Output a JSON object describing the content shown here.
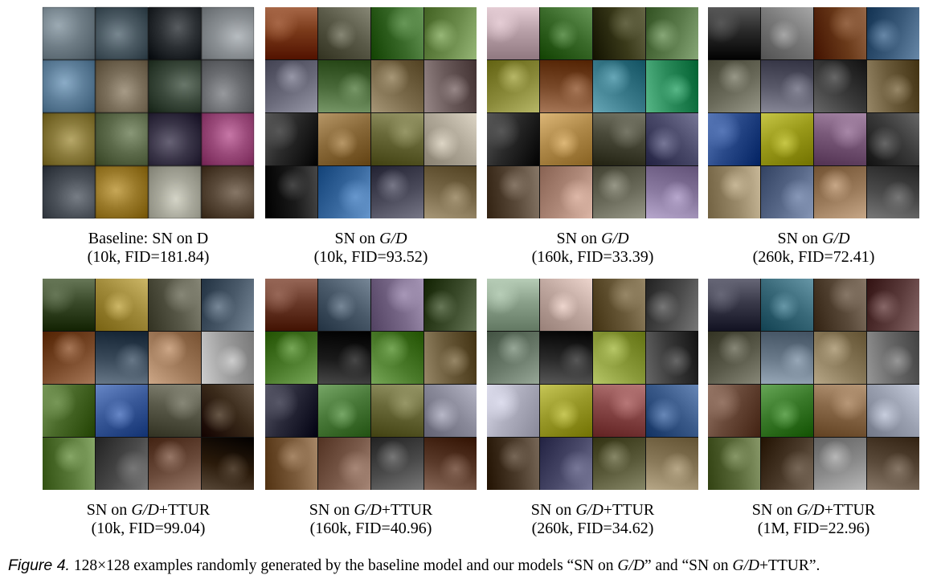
{
  "panels": [
    {
      "caption_line1": "Baseline: SN on D",
      "caption_line2": "(10k, FID=181.84)",
      "style": "blurry",
      "palette": [
        "#6f7d86",
        "#4b5a63",
        "#2b2f33",
        "#8a8f93",
        "#5e7f9a",
        "#7a6e5a",
        "#3c4a3d",
        "#6a6c70",
        "#8a7b3c",
        "#5c6a4a",
        "#3a3548",
        "#9a4a7a",
        "#4a5058",
        "#9a7a2a",
        "#a7a79a",
        "#5a4a3a"
      ]
    },
    {
      "caption_line1": "SN on ",
      "caption_italic": "G/D",
      "caption_line2": "(10k, FID=93.52)",
      "style": "sharp",
      "palette": [
        "#7a3a1a",
        "#5a5a48",
        "#3a6a2a",
        "#6a8a4a",
        "#6a6a7a",
        "#4a6a3a",
        "#7a6a4a",
        "#6a5a5a",
        "#2a2a2a",
        "#8a6a3a",
        "#6a6a3a",
        "#b0a898",
        "#1a1a1a",
        "#3a6aa0",
        "#4a4a5a",
        "#7a6a4a"
      ]
    },
    {
      "caption_line1": "SN on ",
      "caption_italic": "G/D",
      "caption_line2": "(160k, FID=33.39)",
      "style": "sharp",
      "palette": [
        "#b8a0a8",
        "#3a6a2a",
        "#3a3a1a",
        "#5a7a4a",
        "#8a8a3a",
        "#7a4a2a",
        "#3a7a8a",
        "#2a8a5a",
        "#2a2a2a",
        "#b08a4a",
        "#4a4a3a",
        "#4a4a6a",
        "#5a4a3a",
        "#b08a7a",
        "#6a6a5a",
        "#8a7aa0"
      ]
    },
    {
      "caption_line1": "SN on ",
      "caption_italic": "G/D",
      "caption_line2": "(260k, FID=72.41)",
      "style": "sharp",
      "palette": [
        "#2a2a2a",
        "#7a7a7a",
        "#6a3a1a",
        "#3a5a7a",
        "#6a6a5a",
        "#5a5a6a",
        "#3a3a3a",
        "#6a5a3a",
        "#2a4a8a",
        "#9a9a1a",
        "#7a5a7a",
        "#3a3a3a",
        "#9a8a6a",
        "#5a6a8a",
        "#9a7a5a",
        "#4a4a4a"
      ]
    },
    {
      "caption_line1": "SN on ",
      "caption_italic": "G/D",
      "caption_suffix": "+TTUR",
      "caption_line2": "(10k, FID=99.04)",
      "style": "sharp",
      "palette": [
        "#3a4a2a",
        "#a08a3a",
        "#5a5a4a",
        "#4a5a6a",
        "#7a4a2a",
        "#3a4a5a",
        "#a07a5a",
        "#a0a0a0",
        "#4a6a2a",
        "#3a5a9a",
        "#5a5a4a",
        "#3a2a1a",
        "#5a7a3a",
        "#4a4a4a",
        "#6a4a3a",
        "#2a1a0a"
      ]
    },
    {
      "caption_line1": "SN on ",
      "caption_italic": "G/D",
      "caption_suffix": "+TTUR",
      "caption_line2": "(160k, FID=40.96)",
      "style": "sharp",
      "palette": [
        "#6a3a2a",
        "#4a5a6a",
        "#7a6a8a",
        "#3a4a2a",
        "#4a7a2a",
        "#1a1a1a",
        "#4a7a2a",
        "#6a5a3a",
        "#2a2a3a",
        "#4a7a3a",
        "#6a6a3a",
        "#8a8a9a",
        "#7a5a3a",
        "#7a5a4a",
        "#4a4a4a",
        "#5a3a2a"
      ]
    },
    {
      "caption_line1": "SN on ",
      "caption_italic": "G/D",
      "caption_suffix": "+TTUR",
      "caption_line2": "(260k, FID=34.62)",
      "style": "sharp",
      "palette": [
        "#8aa08a",
        "#c0a8a0",
        "#6a5a3a",
        "#4a4a4a",
        "#6a7a6a",
        "#2a2a2a",
        "#8a9a3a",
        "#3a3a3a",
        "#b0b0c0",
        "#9a9a2a",
        "#8a4a4a",
        "#3a5a8a",
        "#4a3a2a",
        "#4a4a6a",
        "#5a5a3a",
        "#8a7a5a"
      ]
    },
    {
      "caption_line1": "SN on ",
      "caption_italic": "G/D",
      "caption_suffix": "+TTUR",
      "caption_line2": "(1M, FID=22.96)",
      "style": "sharp",
      "palette": [
        "#3a3a4a",
        "#3a6a7a",
        "#5a4a3a",
        "#5a3a3a",
        "#5a5a4a",
        "#6a7a8a",
        "#8a7a5a",
        "#6a6a6a",
        "#6a4a3a",
        "#3a7a2a",
        "#8a6a4a",
        "#9aa0b0",
        "#5a6a3a",
        "#4a3a2a",
        "#8a8a8a",
        "#5a4a3a"
      ]
    }
  ],
  "figure_caption": {
    "label": "Figure 4.",
    "text_1": " 128×128 examples randomly generated by the baseline model and our models “SN on ",
    "italic_1": "G/D",
    "text_2": "” and “SN on ",
    "italic_2": "G/D",
    "text_3": "+TTUR”."
  }
}
